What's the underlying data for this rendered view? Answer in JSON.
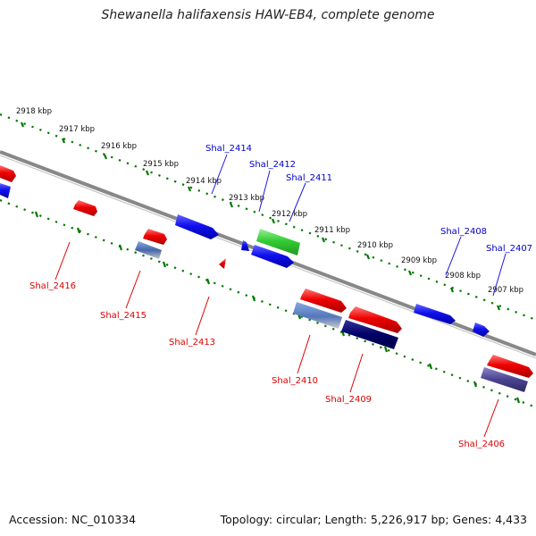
{
  "header": {
    "title": "Shewanella halifaxensis HAW-EB4, complete genome"
  },
  "footer": {
    "accession": "Accession: NC_010334",
    "topology": "Topology: circular; Length: 5,226,917 bp; Genes: 4,433"
  },
  "map": {
    "kbp_labels": [
      "2918 kbp",
      "2917 kbp",
      "2916 kbp",
      "2915 kbp",
      "2914 kbp",
      "2913 kbp",
      "2912 kbp",
      "2911 kbp",
      "2910 kbp",
      "2909 kbp",
      "2908 kbp",
      "2907 kbp"
    ],
    "forward_gene_labels": [
      "Shal_2414",
      "Shal_2412",
      "Shal_2411",
      "Shal_2408",
      "Shal_2407"
    ],
    "reverse_gene_labels": [
      "Shal_2416",
      "Shal_2415",
      "Shal_2413",
      "Shal_2410",
      "Shal_2409",
      "Shal_2406"
    ],
    "colors": {
      "forward": "#1010ee",
      "reverse": "#ee0000",
      "rna_green": "#33cc33",
      "backbone": "#888888",
      "tick_green": "#007700"
    }
  }
}
